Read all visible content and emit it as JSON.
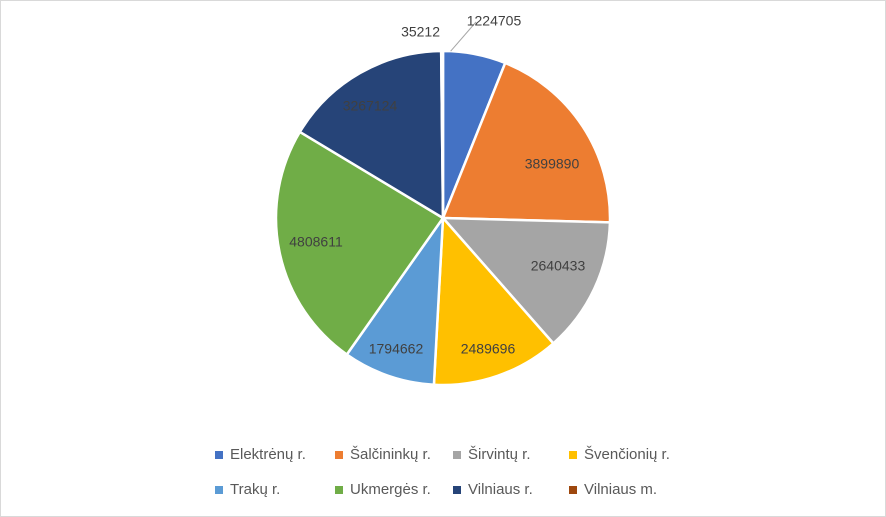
{
  "chart_data": {
    "type": "pie",
    "categories": [
      "Elektrėnų r.",
      "Šalčininkų r.",
      "Širvintų r.",
      "Švenčionių r.",
      "Trakų r.",
      "Ukmergės r.",
      "Vilniaus r.",
      "Vilniaus m."
    ],
    "values": [
      1224705,
      3899890,
      2640433,
      2489696,
      1794662,
      4808611,
      3267124,
      35212
    ],
    "labels": [
      "1224705",
      "3899890",
      "2640433",
      "2489696",
      "1794662",
      "4808611",
      "3267124",
      "35212"
    ],
    "colors": [
      "#4472C4",
      "#ED7D31",
      "#A5A5A5",
      "#FFC000",
      "#5B9BD5",
      "#70AD47",
      "#264478",
      "#9E480E"
    ],
    "legend_position": "bottom",
    "start_angle_deg": 0,
    "direction": "clockwise"
  }
}
